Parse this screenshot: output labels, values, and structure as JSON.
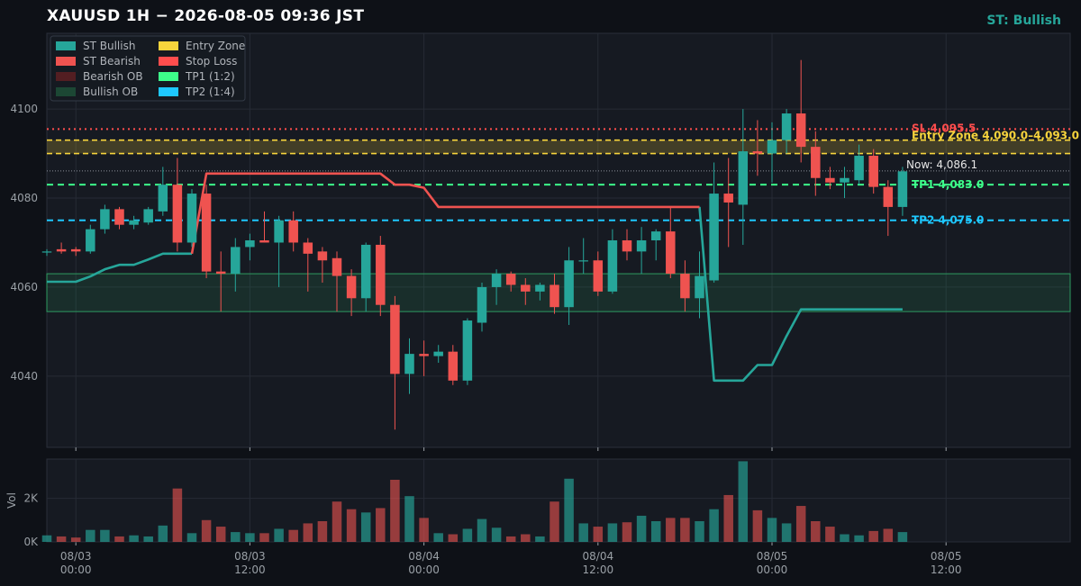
{
  "header": {
    "title": "XAUUSD  1H  −  2026-08-05 09:36 JST",
    "status": "ST: Bullish"
  },
  "colors": {
    "bg": "#0e1117",
    "panel": "#161a22",
    "grid": "#262b35",
    "bull": "#26a69a",
    "bear": "#ef5350",
    "bearish_ob": "#5a1f22",
    "bullish_ob": "#1d4d36",
    "entry": "#f7d43c",
    "sl": "#ff4d4d",
    "tp1": "#3dff8a",
    "tp2": "#1ec8ff"
  },
  "chart_data": {
    "type": "candlestick",
    "instrument": "XAUUSD",
    "timeframe": "1H",
    "ylim": [
      4024,
      4117
    ],
    "y_ticks": [
      4040,
      4060,
      4080,
      4100
    ],
    "vol_ylim": [
      0,
      3800
    ],
    "vol_ticks": [
      0,
      2000
    ],
    "vol_tick_labels": [
      "0K",
      "2K"
    ],
    "vol_label": "Vol",
    "x_ticks": [
      {
        "i": 2,
        "label": [
          "08/03",
          "00:00"
        ]
      },
      {
        "i": 14,
        "label": [
          "08/03",
          "12:00"
        ]
      },
      {
        "i": 26,
        "label": [
          "08/04",
          "00:00"
        ]
      },
      {
        "i": 38,
        "label": [
          "08/04",
          "12:00"
        ]
      },
      {
        "i": 50,
        "label": [
          "08/05",
          "00:00"
        ]
      },
      {
        "i": 62,
        "label": [
          "08/05",
          "12:00"
        ]
      }
    ],
    "candles": [
      {
        "o": 4068.0,
        "h": 4068.5,
        "l": 4067.0,
        "c": 4068.0,
        "v": 300
      },
      {
        "o": 4068.5,
        "h": 4070.0,
        "l": 4067.5,
        "c": 4068.0,
        "v": 250
      },
      {
        "o": 4068.5,
        "h": 4069.0,
        "l": 4067.0,
        "c": 4068.0,
        "v": 200
      },
      {
        "o": 4068.0,
        "h": 4074.0,
        "l": 4067.5,
        "c": 4073.0,
        "v": 550
      },
      {
        "o": 4073.0,
        "h": 4078.5,
        "l": 4072.0,
        "c": 4077.5,
        "v": 550
      },
      {
        "o": 4077.5,
        "h": 4078.0,
        "l": 4073.0,
        "c": 4074.0,
        "v": 250
      },
      {
        "o": 4074.0,
        "h": 4076.0,
        "l": 4073.0,
        "c": 4075.0,
        "v": 300
      },
      {
        "o": 4074.5,
        "h": 4078.0,
        "l": 4074.0,
        "c": 4077.5,
        "v": 250
      },
      {
        "o": 4077.0,
        "h": 4087.0,
        "l": 4076.0,
        "c": 4083.0,
        "v": 750
      },
      {
        "o": 4083.0,
        "h": 4089.0,
        "l": 4068.0,
        "c": 4070.0,
        "v": 2450
      },
      {
        "o": 4070.0,
        "h": 4082.0,
        "l": 4069.0,
        "c": 4081.0,
        "v": 400
      },
      {
        "o": 4081.0,
        "h": 4083.0,
        "l": 4062.0,
        "c": 4063.5,
        "v": 1000
      },
      {
        "o": 4063.5,
        "h": 4068.0,
        "l": 4054.5,
        "c": 4063.0,
        "v": 700
      },
      {
        "o": 4063.0,
        "h": 4071.0,
        "l": 4059.0,
        "c": 4069.0,
        "v": 450
      },
      {
        "o": 4069.0,
        "h": 4072.0,
        "l": 4066.0,
        "c": 4070.5,
        "v": 400
      },
      {
        "o": 4070.5,
        "h": 4077.0,
        "l": 4070.0,
        "c": 4070.0,
        "v": 400
      },
      {
        "o": 4070.0,
        "h": 4076.0,
        "l": 4060.0,
        "c": 4075.0,
        "v": 600
      },
      {
        "o": 4075.0,
        "h": 4077.0,
        "l": 4068.0,
        "c": 4070.0,
        "v": 550
      },
      {
        "o": 4070.0,
        "h": 4071.0,
        "l": 4059.0,
        "c": 4067.5,
        "v": 850
      },
      {
        "o": 4068.0,
        "h": 4069.0,
        "l": 4061.0,
        "c": 4066.0,
        "v": 950
      },
      {
        "o": 4066.5,
        "h": 4068.0,
        "l": 4054.5,
        "c": 4062.5,
        "v": 1850
      },
      {
        "o": 4062.5,
        "h": 4064.0,
        "l": 4053.5,
        "c": 4057.5,
        "v": 1500
      },
      {
        "o": 4057.5,
        "h": 4070.0,
        "l": 4054.5,
        "c": 4069.5,
        "v": 1350
      },
      {
        "o": 4069.5,
        "h": 4071.5,
        "l": 4053.5,
        "c": 4056.0,
        "v": 1550
      },
      {
        "o": 4056.0,
        "h": 4058.0,
        "l": 4028.0,
        "c": 4040.5,
        "v": 2850
      },
      {
        "o": 4040.5,
        "h": 4048.5,
        "l": 4036.0,
        "c": 4045.0,
        "v": 2100
      },
      {
        "o": 4045.0,
        "h": 4048.0,
        "l": 4040.0,
        "c": 4044.5,
        "v": 1100
      },
      {
        "o": 4044.5,
        "h": 4047.0,
        "l": 4043.0,
        "c": 4045.5,
        "v": 400
      },
      {
        "o": 4045.5,
        "h": 4047.0,
        "l": 4038.0,
        "c": 4039.0,
        "v": 350
      },
      {
        "o": 4039.0,
        "h": 4053.0,
        "l": 4038.0,
        "c": 4052.5,
        "v": 600
      },
      {
        "o": 4052.0,
        "h": 4061.0,
        "l": 4050.0,
        "c": 4060.0,
        "v": 1050
      },
      {
        "o": 4060.0,
        "h": 4064.0,
        "l": 4056.0,
        "c": 4063.0,
        "v": 650
      },
      {
        "o": 4063.0,
        "h": 4063.5,
        "l": 4059.0,
        "c": 4060.5,
        "v": 250
      },
      {
        "o": 4060.5,
        "h": 4062.0,
        "l": 4056.0,
        "c": 4059.0,
        "v": 350
      },
      {
        "o": 4059.0,
        "h": 4061.0,
        "l": 4057.0,
        "c": 4060.5,
        "v": 250
      },
      {
        "o": 4060.5,
        "h": 4063.0,
        "l": 4054.0,
        "c": 4055.5,
        "v": 1850
      },
      {
        "o": 4055.5,
        "h": 4069.0,
        "l": 4051.5,
        "c": 4066.0,
        "v": 2900
      },
      {
        "o": 4066.0,
        "h": 4071.0,
        "l": 4063.0,
        "c": 4066.0,
        "v": 850
      },
      {
        "o": 4066.0,
        "h": 4068.0,
        "l": 4058.0,
        "c": 4059.0,
        "v": 700
      },
      {
        "o": 4059.0,
        "h": 4073.0,
        "l": 4058.5,
        "c": 4070.5,
        "v": 850
      },
      {
        "o": 4070.5,
        "h": 4073.0,
        "l": 4066.0,
        "c": 4068.0,
        "v": 900
      },
      {
        "o": 4068.0,
        "h": 4073.5,
        "l": 4063.0,
        "c": 4070.5,
        "v": 1200
      },
      {
        "o": 4070.5,
        "h": 4073.0,
        "l": 4066.0,
        "c": 4072.5,
        "v": 950
      },
      {
        "o": 4072.5,
        "h": 4078.0,
        "l": 4062.0,
        "c": 4063.0,
        "v": 1100
      },
      {
        "o": 4063.0,
        "h": 4066.0,
        "l": 4054.5,
        "c": 4057.5,
        "v": 1100
      },
      {
        "o": 4057.5,
        "h": 4068.0,
        "l": 4053.0,
        "c": 4062.5,
        "v": 950
      },
      {
        "o": 4061.5,
        "h": 4088.0,
        "l": 4061.0,
        "c": 4081.0,
        "v": 1500
      },
      {
        "o": 4081.0,
        "h": 4089.0,
        "l": 4069.0,
        "c": 4079.0,
        "v": 2150
      },
      {
        "o": 4078.5,
        "h": 4100.0,
        "l": 4069.5,
        "c": 4090.5,
        "v": 3700
      },
      {
        "o": 4090.5,
        "h": 4097.5,
        "l": 4085.0,
        "c": 4090.0,
        "v": 1450
      },
      {
        "o": 4090.0,
        "h": 4097.0,
        "l": 4083.5,
        "c": 4093.0,
        "v": 1100
      },
      {
        "o": 4093.0,
        "h": 4100.0,
        "l": 4090.0,
        "c": 4099.0,
        "v": 850
      },
      {
        "o": 4099.0,
        "h": 4111.0,
        "l": 4088.0,
        "c": 4091.5,
        "v": 1650
      },
      {
        "o": 4091.5,
        "h": 4095.0,
        "l": 4080.5,
        "c": 4084.5,
        "v": 950
      },
      {
        "o": 4084.5,
        "h": 4087.0,
        "l": 4082.0,
        "c": 4083.5,
        "v": 700
      },
      {
        "o": 4083.5,
        "h": 4087.0,
        "l": 4080.0,
        "c": 4084.5,
        "v": 350
      },
      {
        "o": 4084.0,
        "h": 4092.0,
        "l": 4083.0,
        "c": 4089.5,
        "v": 300
      },
      {
        "o": 4089.5,
        "h": 4091.0,
        "l": 4081.0,
        "c": 4082.5,
        "v": 500
      },
      {
        "o": 4082.5,
        "h": 4084.0,
        "l": 4071.5,
        "c": 4078.0,
        "v": 600
      },
      {
        "o": 4078.0,
        "h": 4087.0,
        "l": 4076.0,
        "c": 4086.0,
        "v": 450
      }
    ],
    "supertrend": {
      "series_bull_name": "ST Bullish",
      "series_bear_name": "ST Bearish",
      "points": [
        {
          "i": 0,
          "y": 4061.2,
          "dir": "bull"
        },
        {
          "i": 1,
          "y": 4061.2,
          "dir": "bull"
        },
        {
          "i": 2,
          "y": 4061.2,
          "dir": "bull"
        },
        {
          "i": 3,
          "y": 4062.4,
          "dir": "bull"
        },
        {
          "i": 4,
          "y": 4064.0,
          "dir": "bull"
        },
        {
          "i": 5,
          "y": 4065.0,
          "dir": "bull"
        },
        {
          "i": 6,
          "y": 4065.0,
          "dir": "bull"
        },
        {
          "i": 7,
          "y": 4066.2,
          "dir": "bull"
        },
        {
          "i": 8,
          "y": 4067.5,
          "dir": "bull"
        },
        {
          "i": 9,
          "y": 4067.5,
          "dir": "bull"
        },
        {
          "i": 10,
          "y": 4067.5,
          "dir": "bull"
        },
        {
          "i": 10,
          "y": 4067.5,
          "dir": "bear"
        },
        {
          "i": 11,
          "y": 4085.5,
          "dir": "bear"
        },
        {
          "i": 12,
          "y": 4085.5,
          "dir": "bear"
        },
        {
          "i": 13,
          "y": 4085.5,
          "dir": "bear"
        },
        {
          "i": 14,
          "y": 4085.5,
          "dir": "bear"
        },
        {
          "i": 15,
          "y": 4085.5,
          "dir": "bear"
        },
        {
          "i": 16,
          "y": 4085.5,
          "dir": "bear"
        },
        {
          "i": 17,
          "y": 4085.5,
          "dir": "bear"
        },
        {
          "i": 18,
          "y": 4085.5,
          "dir": "bear"
        },
        {
          "i": 19,
          "y": 4085.5,
          "dir": "bear"
        },
        {
          "i": 20,
          "y": 4085.5,
          "dir": "bear"
        },
        {
          "i": 21,
          "y": 4085.5,
          "dir": "bear"
        },
        {
          "i": 22,
          "y": 4085.5,
          "dir": "bear"
        },
        {
          "i": 23,
          "y": 4085.5,
          "dir": "bear"
        },
        {
          "i": 24,
          "y": 4083.0,
          "dir": "bear"
        },
        {
          "i": 25,
          "y": 4083.0,
          "dir": "bear"
        },
        {
          "i": 26,
          "y": 4082.3,
          "dir": "bear"
        },
        {
          "i": 27,
          "y": 4078.0,
          "dir": "bear"
        },
        {
          "i": 28,
          "y": 4078.0,
          "dir": "bear"
        },
        {
          "i": 29,
          "y": 4078.0,
          "dir": "bear"
        },
        {
          "i": 30,
          "y": 4078.0,
          "dir": "bear"
        },
        {
          "i": 31,
          "y": 4078.0,
          "dir": "bear"
        },
        {
          "i": 32,
          "y": 4078.0,
          "dir": "bear"
        },
        {
          "i": 33,
          "y": 4078.0,
          "dir": "bear"
        },
        {
          "i": 34,
          "y": 4078.0,
          "dir": "bear"
        },
        {
          "i": 35,
          "y": 4078.0,
          "dir": "bear"
        },
        {
          "i": 36,
          "y": 4078.0,
          "dir": "bear"
        },
        {
          "i": 37,
          "y": 4078.0,
          "dir": "bear"
        },
        {
          "i": 38,
          "y": 4078.0,
          "dir": "bear"
        },
        {
          "i": 39,
          "y": 4078.0,
          "dir": "bear"
        },
        {
          "i": 40,
          "y": 4078.0,
          "dir": "bear"
        },
        {
          "i": 41,
          "y": 4078.0,
          "dir": "bear"
        },
        {
          "i": 42,
          "y": 4078.0,
          "dir": "bear"
        },
        {
          "i": 43,
          "y": 4078.0,
          "dir": "bear"
        },
        {
          "i": 44,
          "y": 4078.0,
          "dir": "bear"
        },
        {
          "i": 45,
          "y": 4078.0,
          "dir": "bear"
        },
        {
          "i": 45,
          "y": 4078.0,
          "dir": "bull"
        },
        {
          "i": 46,
          "y": 4039.0,
          "dir": "bull"
        },
        {
          "i": 47,
          "y": 4039.0,
          "dir": "bull"
        },
        {
          "i": 48,
          "y": 4039.0,
          "dir": "bull"
        },
        {
          "i": 49,
          "y": 4042.5,
          "dir": "bull"
        },
        {
          "i": 50,
          "y": 4042.5,
          "dir": "bull"
        },
        {
          "i": 51,
          "y": 4049.0,
          "dir": "bull"
        },
        {
          "i": 52,
          "y": 4055.0,
          "dir": "bull"
        },
        {
          "i": 53,
          "y": 4055.0,
          "dir": "bull"
        },
        {
          "i": 54,
          "y": 4055.0,
          "dir": "bull"
        },
        {
          "i": 55,
          "y": 4055.0,
          "dir": "bull"
        },
        {
          "i": 56,
          "y": 4055.0,
          "dir": "bull"
        },
        {
          "i": 57,
          "y": 4055.0,
          "dir": "bull"
        },
        {
          "i": 58,
          "y": 4055.0,
          "dir": "bull"
        },
        {
          "i": 59,
          "y": 4055.0,
          "dir": "bull"
        }
      ]
    },
    "zones": {
      "bullish_ob": {
        "y1": 4054.5,
        "y2": 4063.0,
        "name": "Bullish OB"
      },
      "entry_zone": {
        "y1": 4090.0,
        "y2": 4093.0,
        "name": "Entry Zone",
        "label": "Entry Zone  4,090.0–4,093.0"
      }
    },
    "levels": {
      "sl": {
        "y": 4095.5,
        "label": "SL    4,095.5"
      },
      "tp1": {
        "y": 4083.0,
        "label": "TP1    4,083.0"
      },
      "tp2": {
        "y": 4075.0,
        "label": "TP2    4,075.0"
      },
      "now": {
        "y": 4086.1,
        "label": "Now: 4,086.1"
      }
    },
    "legend": {
      "col1": [
        "ST Bullish",
        "ST Bearish",
        "Bearish OB",
        "Bullish OB"
      ],
      "col2": [
        "Entry Zone",
        "Stop Loss",
        "TP1 (1:2)",
        "TP2 (1:4)"
      ]
    }
  }
}
